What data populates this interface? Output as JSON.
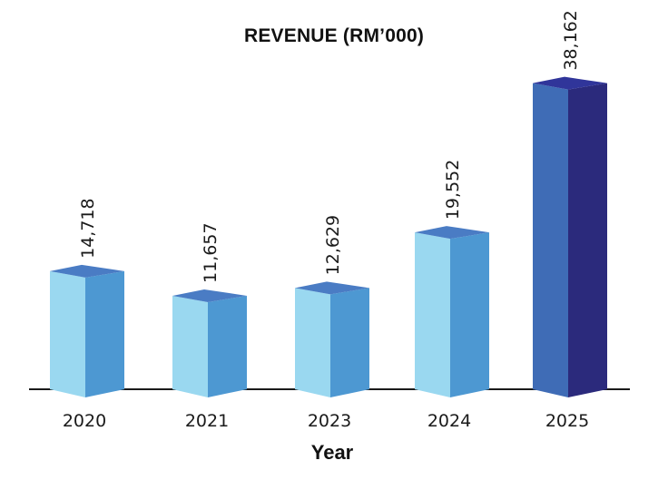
{
  "chart_data": {
    "type": "bar",
    "style": "3d-column",
    "title": "REVENUE (RM’000)",
    "xlabel": "Year",
    "ylabel": "",
    "categories": [
      "2020",
      "2021",
      "2023",
      "2024",
      "2025"
    ],
    "values": [
      14718,
      11657,
      12629,
      19552,
      38162
    ],
    "data_labels": [
      "14,718",
      "11,657",
      "12,629",
      "19,552",
      "38,162"
    ],
    "ylim": [
      0,
      40000
    ],
    "grid": false,
    "legend": "none",
    "colors": {
      "default": {
        "front": "#9AD8F0",
        "side": "#4D98D2",
        "top": "#4A7CC4"
      },
      "highlight": {
        "front": "#3F6CB6",
        "side": "#2B2A7C",
        "top": "#30359A"
      },
      "highlight_index": 4,
      "axis": "#1a1a1a"
    }
  }
}
